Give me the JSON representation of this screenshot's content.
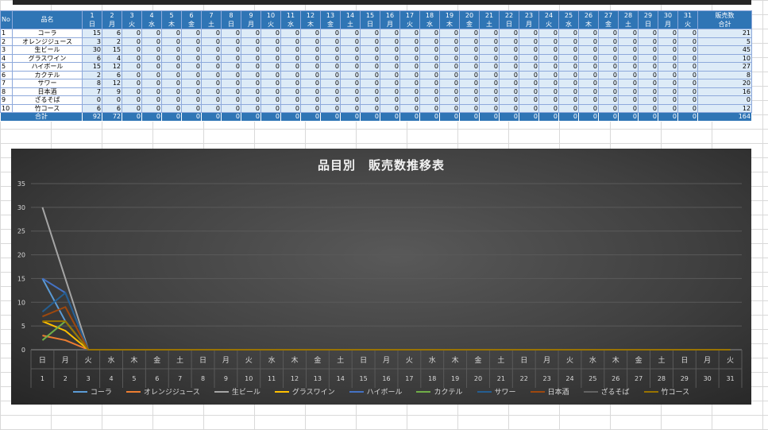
{
  "table": {
    "header_no": "No",
    "header_name": "品名",
    "header_total": [
      "販売数",
      "合計"
    ],
    "days": [
      "1",
      "2",
      "3",
      "4",
      "5",
      "6",
      "7",
      "8",
      "9",
      "10",
      "11",
      "12",
      "13",
      "14",
      "15",
      "16",
      "17",
      "18",
      "19",
      "20",
      "21",
      "22",
      "23",
      "24",
      "25",
      "26",
      "27",
      "28",
      "29",
      "30",
      "31"
    ],
    "weekdays": [
      "日",
      "月",
      "火",
      "水",
      "木",
      "金",
      "土",
      "日",
      "月",
      "火",
      "水",
      "木",
      "金",
      "土",
      "日",
      "月",
      "火",
      "水",
      "木",
      "金",
      "土",
      "日",
      "月",
      "火",
      "水",
      "木",
      "金",
      "土",
      "日",
      "月",
      "火"
    ],
    "rows": [
      {
        "no": "1",
        "name": "コーラ",
        "d1": "15",
        "d2": "6",
        "total": "21"
      },
      {
        "no": "2",
        "name": "オレンジジュース",
        "d1": "3",
        "d2": "2",
        "total": "5"
      },
      {
        "no": "3",
        "name": "生ビール",
        "d1": "30",
        "d2": "15",
        "total": "45"
      },
      {
        "no": "4",
        "name": "グラスワイン",
        "d1": "6",
        "d2": "4",
        "total": "10"
      },
      {
        "no": "5",
        "name": "ハイボール",
        "d1": "15",
        "d2": "12",
        "total": "27"
      },
      {
        "no": "6",
        "name": "カクテル",
        "d1": "2",
        "d2": "6",
        "total": "8"
      },
      {
        "no": "7",
        "name": "サワー",
        "d1": "8",
        "d2": "12",
        "total": "20"
      },
      {
        "no": "8",
        "name": "日本酒",
        "d1": "7",
        "d2": "9",
        "total": "16"
      },
      {
        "no": "9",
        "name": "ざるそば",
        "d1": "0",
        "d2": "0",
        "total": "0"
      },
      {
        "no": "10",
        "name": "竹コース",
        "d1": "6",
        "d2": "6",
        "total": "12"
      }
    ],
    "zero": "0",
    "total_label": "合計",
    "total_d1": "92",
    "total_d2": "72",
    "grand_total": "164"
  },
  "chart_data": {
    "type": "line",
    "title": "品目別　販売数推移表",
    "ylim": [
      0,
      35
    ],
    "yticks": [
      "0",
      "5",
      "10",
      "15",
      "20",
      "25",
      "30",
      "35"
    ],
    "categories": [
      "1",
      "2",
      "3",
      "4",
      "5",
      "6",
      "7",
      "8",
      "9",
      "10",
      "11",
      "12",
      "13",
      "14",
      "15",
      "16",
      "17",
      "18",
      "19",
      "20",
      "21",
      "22",
      "23",
      "24",
      "25",
      "26",
      "27",
      "28",
      "29",
      "30",
      "31"
    ],
    "category_weekdays": [
      "日",
      "月",
      "火",
      "水",
      "木",
      "金",
      "土",
      "日",
      "月",
      "火",
      "水",
      "木",
      "金",
      "土",
      "日",
      "月",
      "火",
      "水",
      "木",
      "金",
      "土",
      "日",
      "月",
      "火",
      "水",
      "木",
      "金",
      "土",
      "日",
      "月",
      "火"
    ],
    "series": [
      {
        "name": "コーラ",
        "color": "#5b9bd5",
        "values": [
          15,
          6,
          0,
          0,
          0,
          0,
          0,
          0,
          0,
          0,
          0,
          0,
          0,
          0,
          0,
          0,
          0,
          0,
          0,
          0,
          0,
          0,
          0,
          0,
          0,
          0,
          0,
          0,
          0,
          0,
          0
        ]
      },
      {
        "name": "オレンジジュース",
        "color": "#ed7d31",
        "values": [
          3,
          2,
          0,
          0,
          0,
          0,
          0,
          0,
          0,
          0,
          0,
          0,
          0,
          0,
          0,
          0,
          0,
          0,
          0,
          0,
          0,
          0,
          0,
          0,
          0,
          0,
          0,
          0,
          0,
          0,
          0
        ]
      },
      {
        "name": "生ビール",
        "color": "#a5a5a5",
        "values": [
          30,
          15,
          0,
          0,
          0,
          0,
          0,
          0,
          0,
          0,
          0,
          0,
          0,
          0,
          0,
          0,
          0,
          0,
          0,
          0,
          0,
          0,
          0,
          0,
          0,
          0,
          0,
          0,
          0,
          0,
          0
        ]
      },
      {
        "name": "グラスワイン",
        "color": "#ffc000",
        "values": [
          6,
          4,
          0,
          0,
          0,
          0,
          0,
          0,
          0,
          0,
          0,
          0,
          0,
          0,
          0,
          0,
          0,
          0,
          0,
          0,
          0,
          0,
          0,
          0,
          0,
          0,
          0,
          0,
          0,
          0,
          0
        ]
      },
      {
        "name": "ハイボール",
        "color": "#4472c4",
        "values": [
          15,
          12,
          0,
          0,
          0,
          0,
          0,
          0,
          0,
          0,
          0,
          0,
          0,
          0,
          0,
          0,
          0,
          0,
          0,
          0,
          0,
          0,
          0,
          0,
          0,
          0,
          0,
          0,
          0,
          0,
          0
        ]
      },
      {
        "name": "カクテル",
        "color": "#70ad47",
        "values": [
          2,
          6,
          0,
          0,
          0,
          0,
          0,
          0,
          0,
          0,
          0,
          0,
          0,
          0,
          0,
          0,
          0,
          0,
          0,
          0,
          0,
          0,
          0,
          0,
          0,
          0,
          0,
          0,
          0,
          0,
          0
        ]
      },
      {
        "name": "サワー",
        "color": "#255e91",
        "values": [
          8,
          12,
          0,
          0,
          0,
          0,
          0,
          0,
          0,
          0,
          0,
          0,
          0,
          0,
          0,
          0,
          0,
          0,
          0,
          0,
          0,
          0,
          0,
          0,
          0,
          0,
          0,
          0,
          0,
          0,
          0
        ]
      },
      {
        "name": "日本酒",
        "color": "#9e480e",
        "values": [
          7,
          9,
          0,
          0,
          0,
          0,
          0,
          0,
          0,
          0,
          0,
          0,
          0,
          0,
          0,
          0,
          0,
          0,
          0,
          0,
          0,
          0,
          0,
          0,
          0,
          0,
          0,
          0,
          0,
          0,
          0
        ]
      },
      {
        "name": "ざるそば",
        "color": "#636363",
        "values": [
          0,
          0,
          0,
          0,
          0,
          0,
          0,
          0,
          0,
          0,
          0,
          0,
          0,
          0,
          0,
          0,
          0,
          0,
          0,
          0,
          0,
          0,
          0,
          0,
          0,
          0,
          0,
          0,
          0,
          0,
          0
        ]
      },
      {
        "name": "竹コース",
        "color": "#997300",
        "values": [
          6,
          6,
          0,
          0,
          0,
          0,
          0,
          0,
          0,
          0,
          0,
          0,
          0,
          0,
          0,
          0,
          0,
          0,
          0,
          0,
          0,
          0,
          0,
          0,
          0,
          0,
          0,
          0,
          0,
          0,
          0
        ]
      }
    ],
    "grid": true,
    "legend": "bottom"
  }
}
